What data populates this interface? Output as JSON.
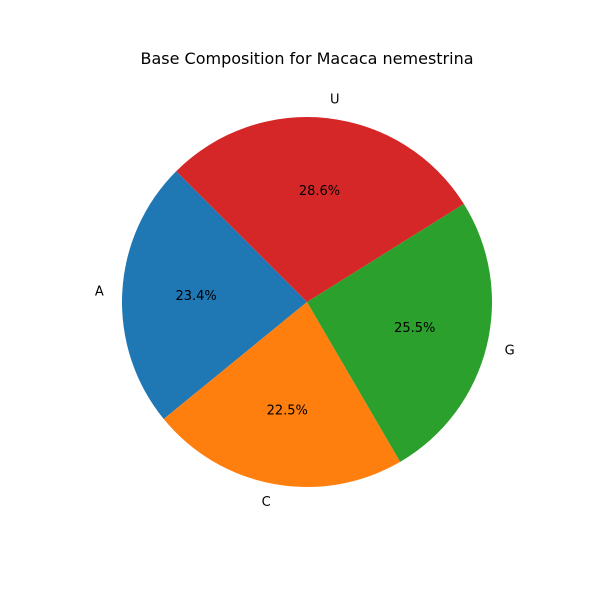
{
  "chart_data": {
    "type": "pie",
    "title": "Base Composition for Macaca nemestrina",
    "categories": [
      "A",
      "C",
      "G",
      "U"
    ],
    "values": [
      23.4,
      22.5,
      25.5,
      28.6
    ],
    "percent_labels": [
      "23.4%",
      "22.5%",
      "25.5%",
      "28.6%"
    ],
    "colors": [
      "#1f77b4",
      "#ff7f0e",
      "#2ca02c",
      "#d62728"
    ],
    "start_angle_deg": 135,
    "direction": "counterclockwise",
    "legend": "none"
  }
}
